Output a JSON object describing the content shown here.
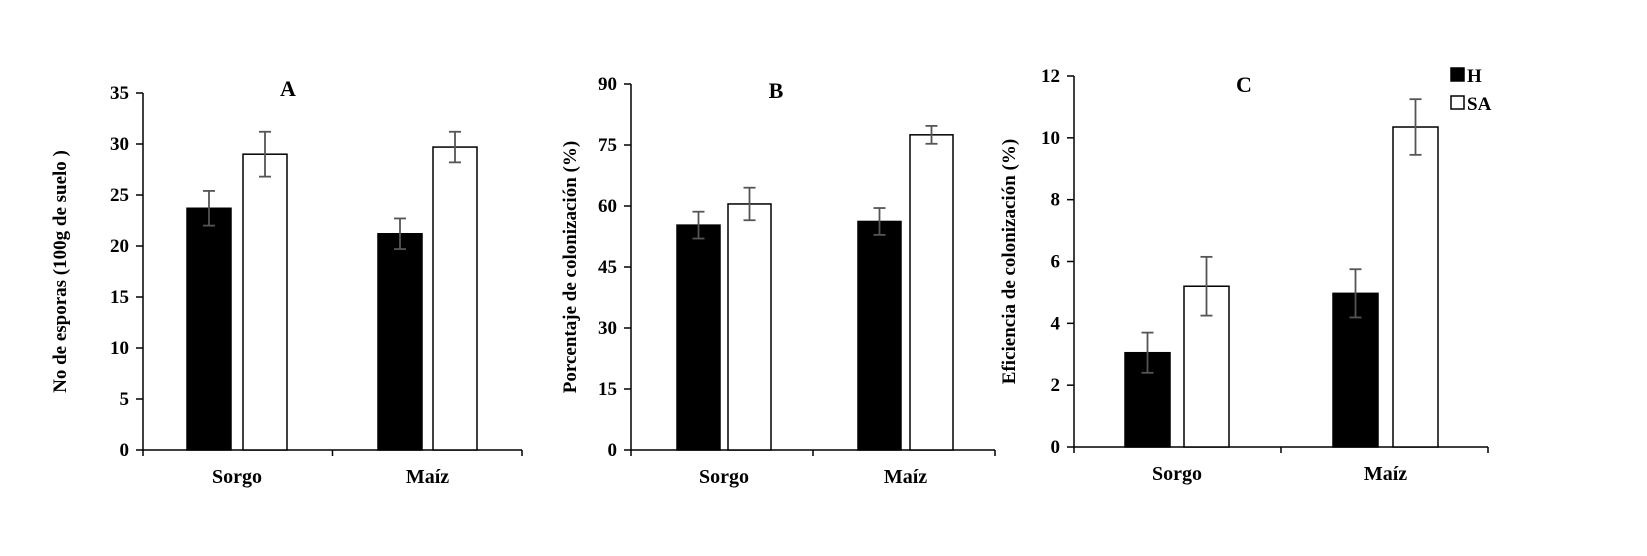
{
  "legend": [
    {
      "label": "H",
      "color": "#000000"
    },
    {
      "label": "SA",
      "color": "#ffffff"
    }
  ],
  "chart_data": [
    {
      "type": "bar",
      "title": "A",
      "ylabel": "No de esporas (100g de suelo )",
      "xlabel": "",
      "categories": [
        "Sorgo",
        "Maíz"
      ],
      "ylim": [
        0,
        35
      ],
      "yticks": [
        0,
        5,
        10,
        15,
        20,
        25,
        30,
        35
      ],
      "series": [
        {
          "name": "H",
          "color": "#000000",
          "values": [
            23.7,
            21.2
          ],
          "errors": [
            1.7,
            1.5
          ]
        },
        {
          "name": "SA",
          "color": "#ffffff",
          "values": [
            29.0,
            29.7
          ],
          "errors": [
            2.2,
            1.5
          ]
        }
      ]
    },
    {
      "type": "bar",
      "title": "B",
      "ylabel": "Porcentaje de colonización (%)",
      "xlabel": "",
      "categories": [
        "Sorgo",
        "Maíz"
      ],
      "ylim": [
        0,
        90
      ],
      "yticks": [
        0,
        15,
        30,
        45,
        60,
        75,
        90
      ],
      "series": [
        {
          "name": "H",
          "color": "#000000",
          "values": [
            55.3,
            56.2
          ],
          "errors": [
            3.3,
            3.3
          ]
        },
        {
          "name": "SA",
          "color": "#ffffff",
          "values": [
            60.5,
            77.5
          ],
          "errors": [
            4.0,
            2.2
          ]
        }
      ]
    },
    {
      "type": "bar",
      "title": "C",
      "ylabel": "Eficiencia de colonización (%)",
      "xlabel": "",
      "categories": [
        "Sorgo",
        "Maíz"
      ],
      "ylim": [
        0,
        12
      ],
      "yticks": [
        0,
        2,
        4,
        6,
        8,
        10,
        12
      ],
      "series": [
        {
          "name": "H",
          "color": "#000000",
          "values": [
            3.05,
            4.97
          ],
          "errors": [
            0.65,
            0.78
          ]
        },
        {
          "name": "SA",
          "color": "#ffffff",
          "values": [
            5.2,
            10.35
          ],
          "errors": [
            0.95,
            0.9
          ]
        }
      ]
    }
  ]
}
